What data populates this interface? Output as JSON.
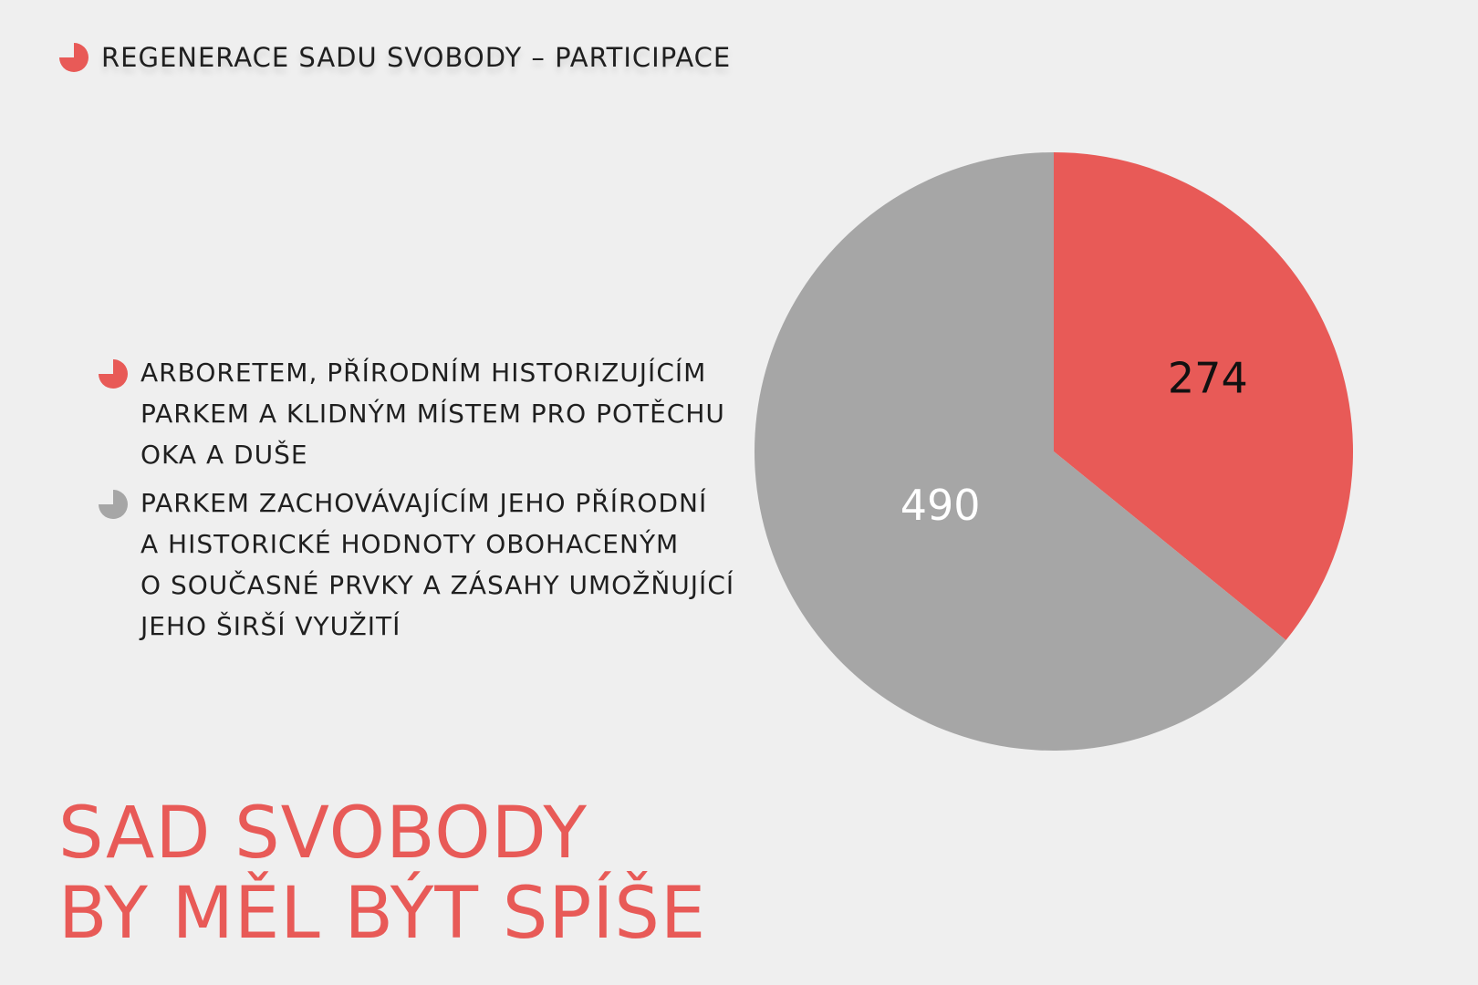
{
  "header": {
    "title": "REGENERACE SADU SVOBODY – PARTICIPACE",
    "icon": "pie-chart-icon",
    "icon_color": "#e85a57"
  },
  "headline": {
    "line1": "SAD SVOBODY",
    "line2": "BY MĚL BÝT SPÍŠE"
  },
  "colors": {
    "red": "#e85a57",
    "gray": "#a6a6a6",
    "background": "#efefef"
  },
  "chart_data": {
    "type": "pie",
    "title": "",
    "slices": [
      {
        "label": "ARBORETEM, PŘÍRODNÍM HISTORIZUJÍCÍM\nPARKEM A KLIDNÝM MÍSTEM PRO POTĚCHU\nOKA A DUŠE",
        "value": 274,
        "display": "274",
        "color": "#e85a57",
        "label_color": "#111111"
      },
      {
        "label": "PARKEM ZACHOVÁVAJÍCÍM JEHO PŘÍRODNÍ\nA HISTORICKÉ HODNOTY OBOHACENÝM\nO SOUČASNÉ PRVKY A ZÁSAHY UMOŽŇUJÍCÍ\nJEHO ŠIRŠÍ VYUŽITÍ",
        "value": 490,
        "display": "490",
        "color": "#a6a6a6",
        "label_color": "#ffffff"
      }
    ],
    "start_angle": "12 o'clock",
    "direction": "clockwise",
    "legend_placement": "left"
  }
}
